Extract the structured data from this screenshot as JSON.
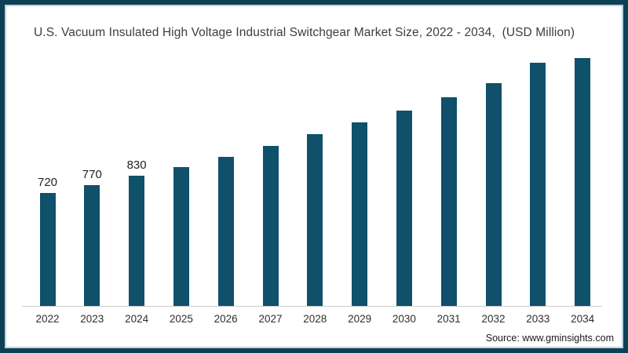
{
  "title": "U.S. Vacuum Insulated High Voltage Industrial Switchgear Market Size, 2022 - 2034,  (USD Million)",
  "source": "Source: www.gminsights.com",
  "colors": {
    "bar": "#0f506b",
    "frame_border": "#0e4156",
    "frame_inner_line": "#b9d6e4",
    "axis_line": "#cccccc",
    "title_text": "#3d3d3d",
    "label_text": "#1f1f1f"
  },
  "chart_data": {
    "type": "bar",
    "title": "U.S. Vacuum Insulated High Voltage Industrial Switchgear Market Size, 2022 - 2034,  (USD Million)",
    "xlabel": "",
    "ylabel": "USD Million",
    "categories": [
      "2022",
      "2023",
      "2024",
      "2025",
      "2026",
      "2027",
      "2028",
      "2029",
      "2030",
      "2031",
      "2032",
      "2033",
      "2034"
    ],
    "values": [
      720,
      770,
      830,
      885,
      950,
      1020,
      1095,
      1170,
      1245,
      1330,
      1420,
      1550,
      1580
    ],
    "data_labels": [
      "720",
      "770",
      "830",
      null,
      null,
      null,
      null,
      null,
      null,
      null,
      null,
      null,
      null
    ],
    "ylim": [
      0,
      1700
    ],
    "y_axis_visible": false,
    "x_axis_visible": true,
    "grid": false,
    "legend": false,
    "bar_color": "#0f506b"
  }
}
